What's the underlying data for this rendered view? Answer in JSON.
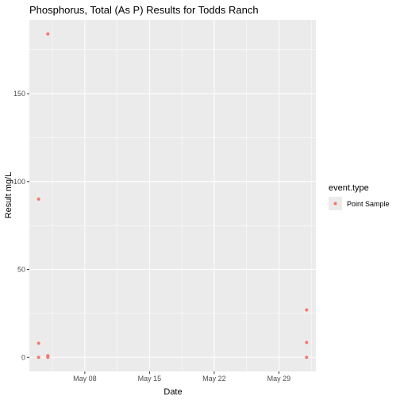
{
  "chart_data": {
    "type": "scatter",
    "title": "Phosphorus, Total (As P) Results for Todds Ranch",
    "xlabel": "Date",
    "ylabel": "Result mg/L",
    "x_tick_labels": [
      "May 08",
      "May 15",
      "May 22",
      "May 29"
    ],
    "x_tick_values": [
      "2017-05-08",
      "2017-05-15",
      "2017-05-22",
      "2017-05-29"
    ],
    "y_tick_labels": [
      "0",
      "50",
      "100",
      "150"
    ],
    "y_tick_values": [
      0,
      50,
      100,
      150
    ],
    "xlim": [
      "2017-05-02",
      "2017-06-02"
    ],
    "ylim": [
      -8,
      192
    ],
    "grid": true,
    "legend": {
      "title": "event.type",
      "position": "right",
      "entries": [
        {
          "label": "Point Sample",
          "color": "#f8766d"
        }
      ]
    },
    "series": [
      {
        "name": "Point Sample",
        "color": "#f8766d",
        "points": [
          {
            "x": "2017-05-03",
            "y": 90
          },
          {
            "x": "2017-05-03",
            "y": 8
          },
          {
            "x": "2017-05-03",
            "y": 0
          },
          {
            "x": "2017-05-04",
            "y": 184
          },
          {
            "x": "2017-05-04",
            "y": 1
          },
          {
            "x": "2017-05-04",
            "y": 0
          },
          {
            "x": "2017-05-04",
            "y": 0.5
          },
          {
            "x": "2017-06-01",
            "y": 27
          },
          {
            "x": "2017-06-01",
            "y": 8.5
          },
          {
            "x": "2017-06-01",
            "y": 0
          }
        ]
      }
    ]
  }
}
